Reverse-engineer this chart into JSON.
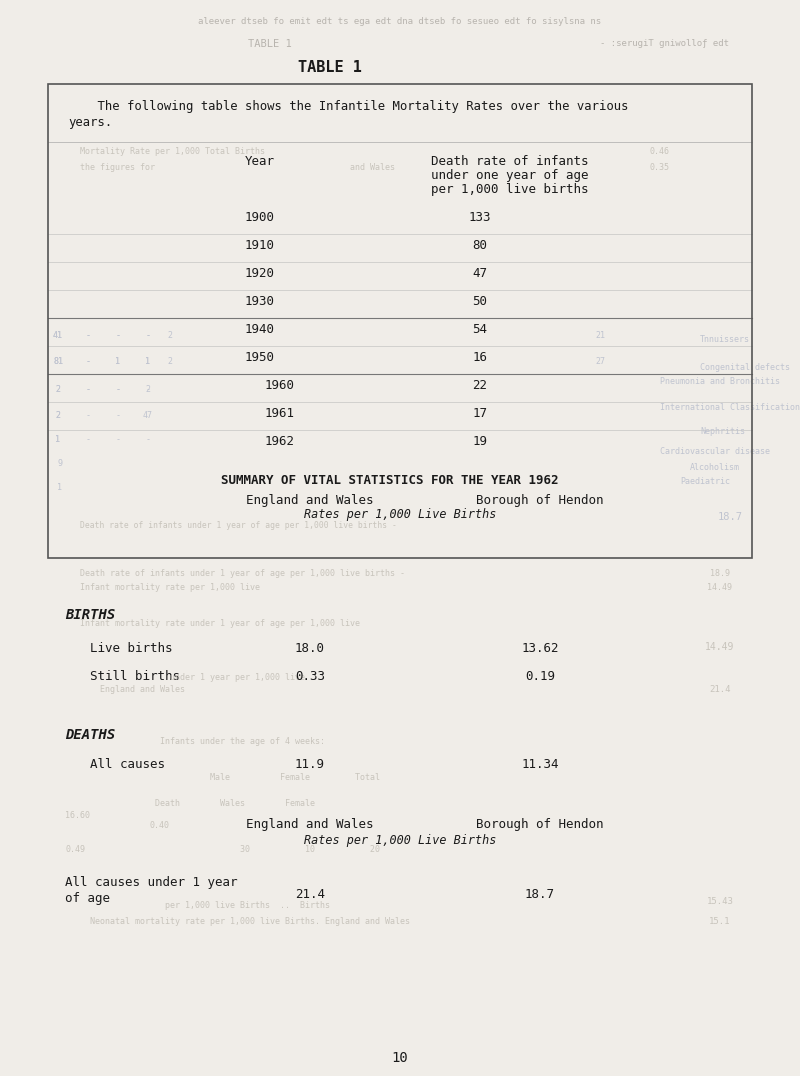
{
  "page_title": "TABLE 1",
  "bg": "#f0ede8",
  "header_text_line1": "    The following table shows the Infantile Mortality Rates over the various",
  "header_text_line2": "years.",
  "col1_header": "Year",
  "col2_header_line1": "Death rate of infants",
  "col2_header_line2": "under one year of age",
  "col2_header_line3": "per 1,000 live births",
  "table_rows": [
    [
      "1900",
      "133"
    ],
    [
      "1910",
      "80"
    ],
    [
      "1920",
      "47"
    ],
    [
      "1930",
      "50"
    ],
    [
      "1940",
      "54"
    ],
    [
      "1950",
      "16"
    ],
    [
      "1960",
      "22"
    ],
    [
      "1961",
      "17"
    ],
    [
      "1962",
      "19"
    ]
  ],
  "summary_title": "SUMMARY OF VITAL STATISTICS FOR THE YEAR 1962",
  "sum_col1": "England and Wales",
  "sum_col2": "Borough of Hendon",
  "sum_subtitle": "Rates per 1,000 Live Births",
  "births_label": "BIRTHS",
  "lb_label": "Live births",
  "lb_ew": "18.0",
  "lb_bh": "13.62",
  "sb_label": "Still births",
  "sb_ew": "0.33",
  "sb_bh": "0.19",
  "deaths_label": "DEATHS",
  "ac_label": "All causes",
  "ac_ew": "11.9",
  "ac_bh": "11.34",
  "sum2_col1": "England and Wales",
  "sum2_col2": "Borough of Hendon",
  "sum2_subtitle": "Rates per 1,000 Live Births",
  "final_label_line1": "All causes under 1 year",
  "final_label_line2": "of age",
  "final_ew": "21.4",
  "final_bh": "18.7",
  "page_num": "10",
  "dark": "#1a1a1a",
  "fade1": "#b8b4ae",
  "fade2": "#c8c4bc",
  "box_edge": "#555555"
}
